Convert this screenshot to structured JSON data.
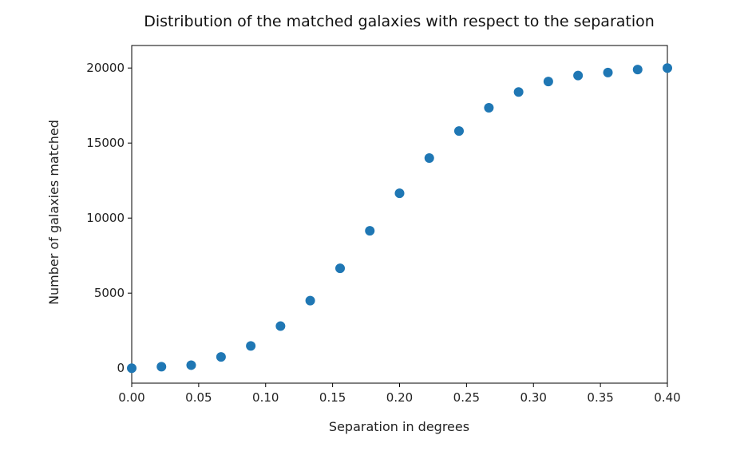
{
  "chart_data": {
    "type": "scatter",
    "title": "Distribution of the matched galaxies with respect to the separation",
    "xlabel": "Separation in degrees",
    "ylabel": "Number of galaxies matched",
    "xlim": [
      0.0,
      0.4
    ],
    "ylim": [
      -1000,
      21500
    ],
    "xticks": [
      0.0,
      0.05,
      0.1,
      0.15,
      0.2,
      0.25,
      0.3,
      0.35,
      0.4
    ],
    "xtick_labels": [
      "0.00",
      "0.05",
      "0.10",
      "0.15",
      "0.20",
      "0.25",
      "0.30",
      "0.35",
      "0.40"
    ],
    "yticks": [
      0,
      5000,
      10000,
      15000,
      20000
    ],
    "ytick_labels": [
      "0",
      "5000",
      "10000",
      "15000",
      "20000"
    ],
    "grid": false,
    "marker_color": "#1f77b4",
    "x": [
      0.0,
      0.0222,
      0.0444,
      0.0667,
      0.0889,
      0.1111,
      0.1333,
      0.1556,
      0.1778,
      0.2,
      0.2222,
      0.2444,
      0.2667,
      0.2889,
      0.3111,
      0.3333,
      0.3556,
      0.3778,
      0.4
    ],
    "y": [
      0,
      100,
      200,
      750,
      1480,
      2800,
      4500,
      6650,
      9150,
      11650,
      14000,
      15800,
      17350,
      18400,
      19100,
      19500,
      19700,
      19900,
      20000
    ]
  }
}
